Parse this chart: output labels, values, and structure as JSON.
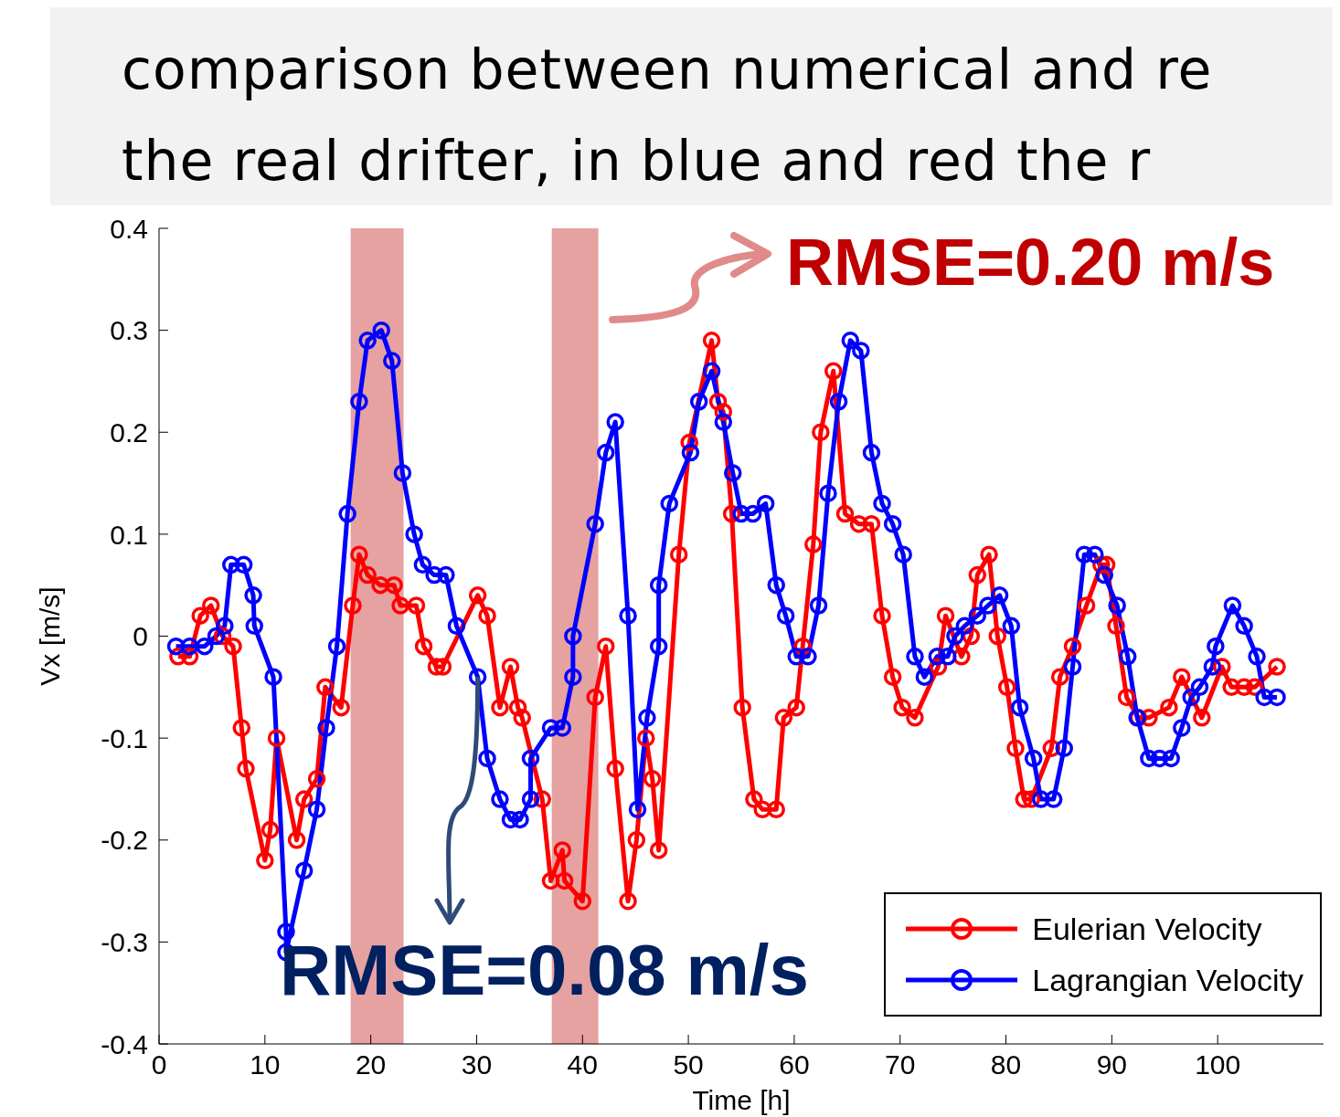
{
  "chart_data": {
    "type": "line",
    "title": "comparison between numerical and re",
    "subtitle": "the real drifter, in blue and red the r",
    "xlabel": "Time [h]",
    "ylabel": "Vx [m/s]",
    "xlim": [
      0,
      110
    ],
    "xticks": [
      0,
      10,
      20,
      30,
      40,
      50,
      60,
      70,
      80,
      90,
      100
    ],
    "ylim": [
      -0.4,
      0.4
    ],
    "yticks": [
      -0.4,
      -0.3,
      -0.2,
      -0.1,
      0,
      0.1,
      0.2,
      0.3,
      0.4
    ],
    "grid": false,
    "legend": "bottom right",
    "marker": "circle",
    "line_style": "solid",
    "annotations": [
      "RMSE=0.20 m/s",
      {
        "text": "RMSE=0.08 m/s",
        "x": 30.1,
        "y": -0.04
      }
    ],
    "bands": [
      {
        "axis": "x",
        "from": 18.1,
        "to": 23.1,
        "color": "#e08a8a"
      },
      {
        "axis": "x",
        "from": 37.1,
        "to": 41.5,
        "color": "#e08a8a"
      }
    ],
    "series": [
      {
        "name": "Eulerian Velocity",
        "color": "#ff0000",
        "x": [
          1.8,
          2.9,
          3.9,
          4.9,
          6.0,
          7.0,
          7.8,
          8.2,
          10.0,
          10.5,
          11.1,
          13.0,
          13.7,
          14.9,
          15.7,
          17.2,
          18.3,
          18.9,
          19.7,
          20.9,
          22.2,
          22.8,
          24.3,
          25.0,
          26.2,
          26.8,
          30.1,
          31.0,
          32.2,
          33.2,
          33.9,
          34.3,
          36.2,
          37.0,
          38.1,
          38.3,
          40.0,
          41.2,
          42.2,
          43.1,
          44.3,
          45.1,
          46.0,
          46.6,
          47.2,
          49.1,
          50.1,
          52.2,
          52.8,
          53.3,
          54.1,
          55.1,
          56.2,
          57.0,
          58.3,
          59.0,
          60.2,
          60.8,
          61.8,
          62.5,
          63.7,
          64.8,
          66.1,
          67.3,
          68.3,
          69.3,
          70.2,
          71.4,
          73.6,
          74.3,
          75.8,
          76.7,
          77.3,
          78.4,
          79.2,
          80.1,
          80.9,
          81.7,
          82.4,
          84.3,
          85.1,
          86.3,
          87.6,
          89.0,
          89.5,
          90.4,
          91.4,
          92.5,
          93.5,
          95.4,
          96.6,
          98.5,
          100.4,
          101.3,
          102.5,
          103.5,
          105.6
        ],
        "values": [
          -0.02,
          -0.02,
          0.02,
          0.03,
          0.0,
          -0.01,
          -0.09,
          -0.13,
          -0.22,
          -0.19,
          -0.1,
          -0.2,
          -0.16,
          -0.14,
          -0.05,
          -0.07,
          0.03,
          0.08,
          0.06,
          0.05,
          0.05,
          0.03,
          0.03,
          -0.01,
          -0.03,
          -0.03,
          0.04,
          0.02,
          -0.07,
          -0.03,
          -0.07,
          -0.08,
          -0.16,
          -0.24,
          -0.21,
          -0.24,
          -0.26,
          -0.06,
          -0.01,
          -0.13,
          -0.26,
          -0.2,
          -0.1,
          -0.14,
          -0.21,
          0.08,
          0.19,
          0.29,
          0.23,
          0.22,
          0.12,
          -0.07,
          -0.16,
          -0.17,
          -0.17,
          -0.08,
          -0.07,
          -0.01,
          0.09,
          0.2,
          0.26,
          0.12,
          0.11,
          0.11,
          0.02,
          -0.04,
          -0.07,
          -0.08,
          -0.03,
          0.02,
          -0.02,
          0.0,
          0.06,
          0.08,
          0.0,
          -0.05,
          -0.11,
          -0.16,
          -0.16,
          -0.11,
          -0.04,
          -0.01,
          0.03,
          0.07,
          0.07,
          0.01,
          -0.06,
          -0.08,
          -0.08,
          -0.07,
          -0.04,
          -0.08,
          -0.03,
          -0.05,
          -0.05,
          -0.05,
          -0.03
        ]
      },
      {
        "name": "Lagrangian Velocity",
        "color": "#0000ff",
        "x": [
          1.6,
          2.9,
          4.3,
          5.4,
          6.2,
          6.8,
          8.0,
          8.9,
          9.0,
          10.8,
          12.0,
          12.0,
          13.7,
          14.9,
          15.8,
          16.8,
          17.8,
          18.9,
          19.7,
          21.0,
          22.0,
          23.0,
          24.1,
          24.9,
          26.0,
          27.1,
          28.1,
          30.1,
          31.0,
          32.2,
          33.2,
          34.1,
          35.1,
          35.1,
          37.0,
          38.1,
          39.1,
          39.1,
          41.2,
          42.2,
          43.1,
          44.3,
          45.2,
          46.1,
          47.2,
          47.2,
          48.2,
          50.2,
          51.0,
          52.2,
          53.3,
          54.2,
          55.0,
          56.1,
          57.3,
          58.3,
          59.2,
          60.2,
          61.3,
          62.3,
          63.2,
          64.2,
          65.3,
          66.3,
          67.3,
          68.3,
          69.3,
          70.3,
          71.4,
          72.3,
          73.5,
          74.5,
          75.2,
          76.1,
          77.3,
          78.3,
          79.4,
          80.5,
          81.3,
          82.6,
          83.3,
          84.5,
          85.5,
          86.3,
          87.4,
          88.4,
          89.3,
          90.5,
          91.5,
          92.4,
          93.5,
          94.5,
          95.6,
          96.6,
          97.5,
          98.3,
          99.5,
          99.8,
          101.4,
          102.5,
          103.7,
          104.4,
          105.6
        ],
        "values": [
          -0.01,
          -0.01,
          -0.01,
          0.0,
          0.01,
          0.07,
          0.07,
          0.04,
          0.01,
          -0.04,
          -0.29,
          -0.31,
          -0.23,
          -0.17,
          -0.09,
          -0.01,
          0.12,
          0.23,
          0.29,
          0.3,
          0.27,
          0.16,
          0.1,
          0.07,
          0.06,
          0.06,
          0.01,
          -0.04,
          -0.12,
          -0.16,
          -0.18,
          -0.18,
          -0.16,
          -0.12,
          -0.09,
          -0.09,
          -0.04,
          0.0,
          0.11,
          0.18,
          0.21,
          0.02,
          -0.17,
          -0.08,
          -0.01,
          0.05,
          0.13,
          0.18,
          0.23,
          0.26,
          0.21,
          0.16,
          0.12,
          0.12,
          0.13,
          0.05,
          0.02,
          -0.02,
          -0.02,
          0.03,
          0.14,
          0.23,
          0.29,
          0.28,
          0.18,
          0.13,
          0.11,
          0.08,
          -0.02,
          -0.04,
          -0.02,
          -0.02,
          0.0,
          0.01,
          0.02,
          0.03,
          0.04,
          0.01,
          -0.07,
          -0.12,
          -0.16,
          -0.16,
          -0.11,
          -0.03,
          0.08,
          0.08,
          0.06,
          0.03,
          -0.02,
          -0.08,
          -0.12,
          -0.12,
          -0.12,
          -0.09,
          -0.06,
          -0.05,
          -0.03,
          -0.01,
          0.03,
          0.01,
          -0.02,
          -0.06,
          -0.06
        ]
      }
    ]
  }
}
